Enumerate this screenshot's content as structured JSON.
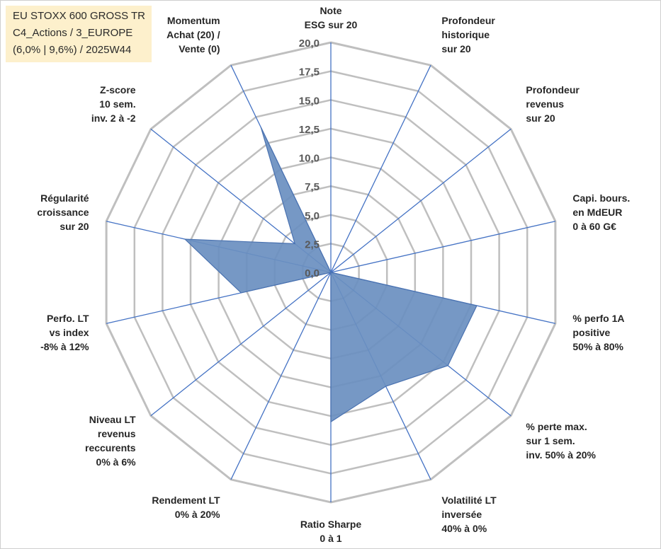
{
  "title_box": {
    "line1": "EU STOXX 600 GROSS TR",
    "line2": "C4_Actions / 3_EUROPE",
    "line3": "(6,0% | 9,6%) / 2025W44"
  },
  "colors": {
    "grid": "#bfbfbf",
    "spoke": "#4472c4",
    "fill": "#6a8fc0",
    "fill_stroke": "#4a72b0",
    "title_bg": "#fdf0cc"
  },
  "chart_data": {
    "type": "radar",
    "r_range": [
      0,
      20
    ],
    "r_ticks": [
      "0,0",
      "2,5",
      "5,0",
      "7,5",
      "10,0",
      "12,5",
      "15,0",
      "17,5",
      "20,0"
    ],
    "axes": [
      {
        "lines": [
          "Note",
          "ESG sur 20"
        ]
      },
      {
        "lines": [
          "Profondeur",
          "historique",
          "sur 20"
        ]
      },
      {
        "lines": [
          "Profondeur",
          "revenus",
          "sur 20"
        ]
      },
      {
        "lines": [
          "Capi. bours.",
          "en MdEUR",
          "0 à 60 G€"
        ]
      },
      {
        "lines": [
          "% perfo 1A",
          "positive",
          "50% à 80%"
        ]
      },
      {
        "lines": [
          "% perte max.",
          "sur 1 sem.",
          "inv. 50% à 20%"
        ]
      },
      {
        "lines": [
          "Volatilité LT",
          "inversée",
          "40% à 0%"
        ]
      },
      {
        "lines": [
          "Ratio Sharpe",
          "0 à 1"
        ]
      },
      {
        "lines": [
          "Rendement LT",
          "0% à 20%"
        ]
      },
      {
        "lines": [
          "Niveau LT",
          "revenus",
          "reccurents",
          "0% à 6%"
        ]
      },
      {
        "lines": [
          "Perfo. LT",
          "vs index",
          "-8% à 12%"
        ]
      },
      {
        "lines": [
          "Régularité",
          "croissance",
          "sur 20"
        ]
      },
      {
        "lines": [
          "Z-score",
          "10 sem.",
          "inv. 2 à -2"
        ]
      },
      {
        "lines": [
          "Momentum",
          "Achat (20) /",
          "Vente (0)"
        ]
      }
    ],
    "values": [
      0,
      0,
      0,
      0,
      13,
      13,
      11,
      13,
      0,
      0,
      8,
      13,
      4,
      14
    ],
    "grid": true,
    "legend": "none"
  }
}
